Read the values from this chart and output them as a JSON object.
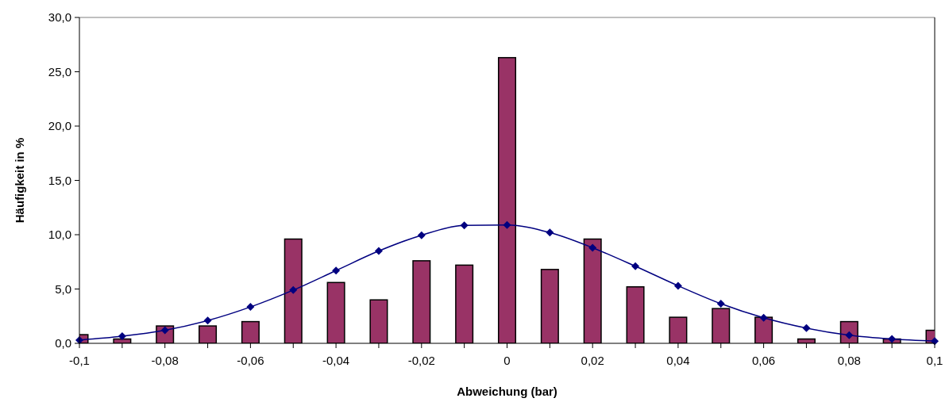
{
  "chart_data": {
    "type": "bar",
    "xlabel": "Abweichung (bar)",
    "ylabel": "Häufigkeit in %",
    "x": [
      -0.1,
      -0.09,
      -0.08,
      -0.07,
      -0.06,
      -0.05,
      -0.04,
      -0.03,
      -0.02,
      -0.01,
      0,
      0.01,
      0.02,
      0.03,
      0.04,
      0.05,
      0.06,
      0.07,
      0.08,
      0.09,
      0.1
    ],
    "series": [
      {
        "color": "#993366",
        "values": [
          0.8,
          0.4,
          1.6,
          1.6,
          2.0,
          9.6,
          5.6,
          4.0,
          7.6,
          7.2,
          26.3,
          6.8,
          9.6,
          5.2,
          2.4,
          3.2,
          2.4,
          0.4,
          2.0,
          0.4,
          1.2
        ]
      },
      {
        "type": "line",
        "color": "#000080",
        "marker": "diamond",
        "line_style": "solid",
        "values": [
          0.3,
          0.65,
          1.2,
          2.1,
          3.35,
          4.9,
          6.7,
          8.5,
          9.95,
          10.85,
          10.9,
          10.2,
          8.8,
          7.1,
          5.3,
          3.65,
          2.35,
          1.4,
          0.75,
          0.4,
          0.2
        ]
      }
    ],
    "xlim": [
      -0.1,
      0.1
    ],
    "xticks": [
      {
        "value": -0.1,
        "label": "-0,1"
      },
      {
        "value": -0.09,
        "label": null
      },
      {
        "value": -0.08,
        "label": "-0,08"
      },
      {
        "value": -0.07,
        "label": null
      },
      {
        "value": -0.06,
        "label": "-0,06"
      },
      {
        "value": -0.05,
        "label": null
      },
      {
        "value": -0.04,
        "label": "-0,04"
      },
      {
        "value": -0.03,
        "label": null
      },
      {
        "value": -0.02,
        "label": "-0,02"
      },
      {
        "value": -0.01,
        "label": null
      },
      0,
      {
        "value": 0.01,
        "label": null
      },
      {
        "value": 0.02,
        "label": "0,02"
      },
      {
        "value": 0.03,
        "label": null
      },
      {
        "value": 0.04,
        "label": "0,04"
      },
      {
        "value": 0.05,
        "label": null
      },
      {
        "value": 0.06,
        "label": "0,06"
      },
      {
        "value": 0.07,
        "label": null
      },
      {
        "value": 0.08,
        "label": "0,08"
      },
      {
        "value": 0.09,
        "label": null
      },
      {
        "value": 0.1,
        "label": "0,1"
      }
    ],
    "ylim": [
      0,
      30
    ],
    "yticks": [
      {
        "value": 0,
        "label": "0,0"
      },
      {
        "value": 5,
        "label": "5,0"
      },
      {
        "value": 10,
        "label": "10,0"
      },
      {
        "value": 15,
        "label": "15,0"
      },
      {
        "value": 20,
        "label": "20,0"
      },
      {
        "value": 25,
        "label": "25,0"
      },
      {
        "value": 30,
        "label": "30,0"
      }
    ],
    "grid": false
  }
}
